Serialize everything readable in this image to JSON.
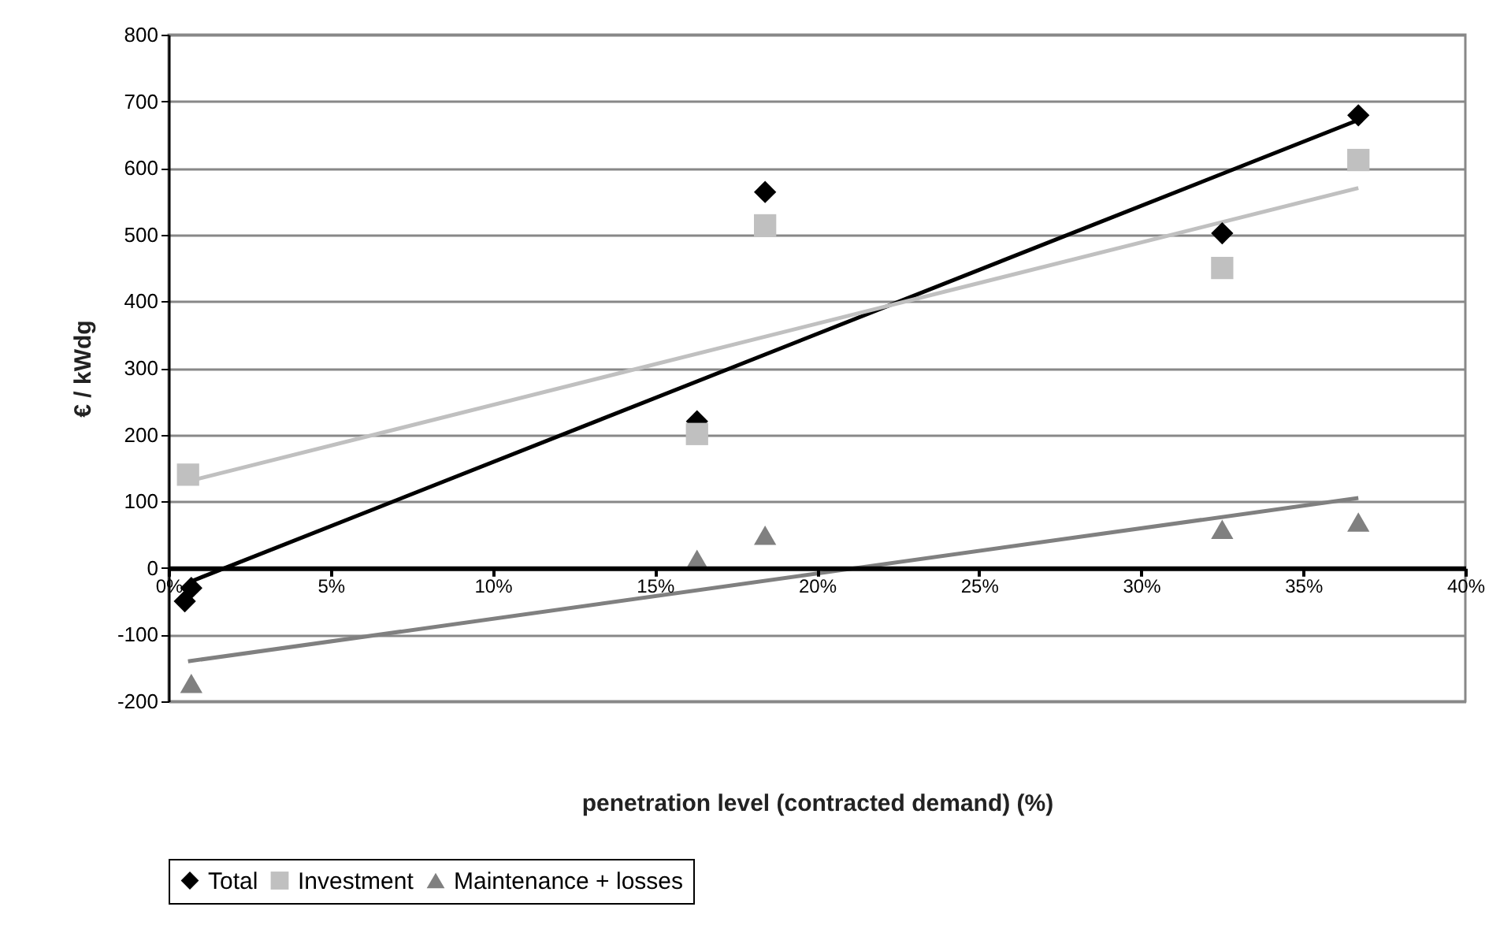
{
  "chart_data": {
    "type": "scatter",
    "xlabel": "penetration level (contracted demand) (%)",
    "ylabel": "€ / kWdg",
    "xlim": [
      0,
      40
    ],
    "xticks": [
      {
        "value": 0,
        "label": "0%"
      },
      {
        "value": 5,
        "label": "5%"
      },
      {
        "value": 10,
        "label": "10%"
      },
      {
        "value": 15,
        "label": "15%"
      },
      {
        "value": 20,
        "label": "20%"
      },
      {
        "value": 25,
        "label": "25%"
      },
      {
        "value": 30,
        "label": "30%"
      },
      {
        "value": 35,
        "label": "35%"
      },
      {
        "value": 40,
        "label": "40%"
      }
    ],
    "ylim": [
      -200,
      800
    ],
    "yticks": [
      -200,
      -100,
      0,
      100,
      200,
      300,
      400,
      500,
      600,
      700,
      800
    ],
    "grid": "y",
    "legend": "bottom",
    "series": [
      {
        "name": "Total",
        "marker": "diamond",
        "color": "#000000",
        "x": [
          0.5,
          0.7,
          16.3,
          18.4,
          32.5,
          36.7
        ],
        "values": [
          -50,
          -30,
          220,
          564,
          502,
          679
        ]
      },
      {
        "name": "Investment",
        "marker": "square",
        "color": "#c0c0c0",
        "x": [
          0.6,
          16.3,
          18.4,
          32.5,
          36.7
        ],
        "values": [
          140,
          201,
          514,
          450,
          612
        ]
      },
      {
        "name": "Maintenance + losses",
        "marker": "triangle",
        "color": "#808080",
        "x": [
          0.7,
          16.3,
          18.4,
          32.5,
          36.7
        ],
        "values": [
          -173,
          13,
          49,
          58,
          69
        ]
      },
      {
        "type": "line",
        "color": "#000000",
        "x": [
          0.7,
          36.7
        ],
        "values": [
          -20,
          672
        ]
      },
      {
        "type": "line",
        "color": "#c0c0c0",
        "x": [
          0.6,
          36.7
        ],
        "values": [
          130,
          570
        ]
      },
      {
        "type": "line",
        "color": "#808080",
        "x": [
          0.6,
          36.7
        ],
        "values": [
          -140,
          105
        ]
      }
    ]
  }
}
